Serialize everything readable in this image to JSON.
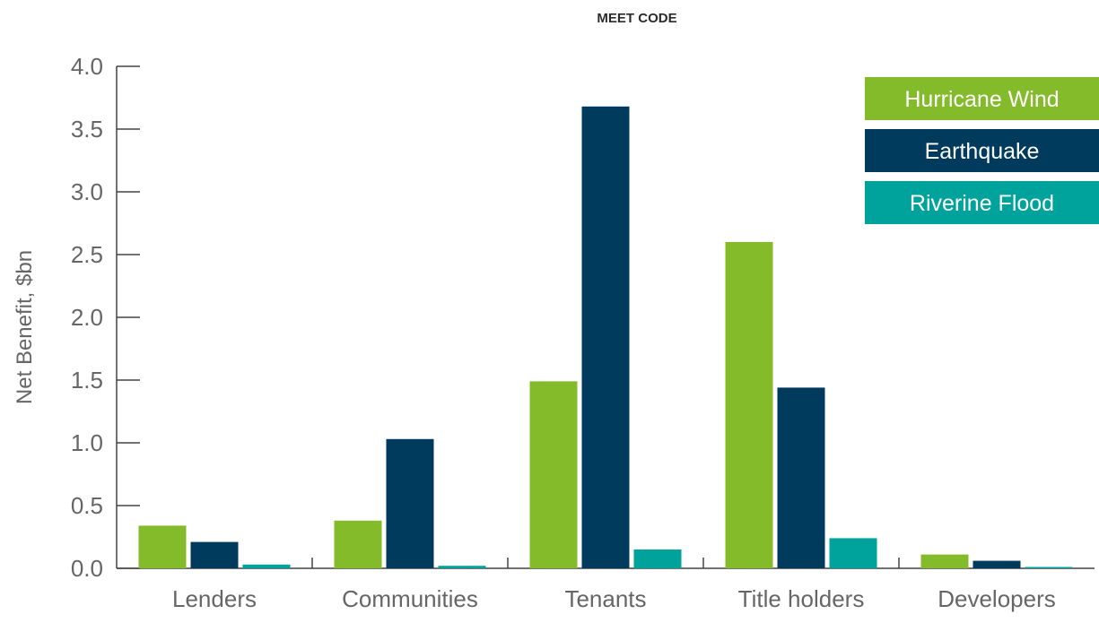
{
  "chart_data": {
    "type": "bar",
    "title": "MEET CODE",
    "ylabel": "Net Benefit, $bn",
    "xlabel": "",
    "ylim": [
      0,
      4.0
    ],
    "yticks": [
      "0.0",
      "0.5",
      "1.0",
      "1.5",
      "2.0",
      "2.5",
      "3.0",
      "3.5",
      "4.0"
    ],
    "categories": [
      "Lenders",
      "Communities",
      "Tenants",
      "Title holders",
      "Developers"
    ],
    "series": [
      {
        "name": "Hurricane Wind",
        "color": "#84bb2a",
        "values": [
          0.34,
          0.38,
          1.49,
          2.6,
          0.11
        ]
      },
      {
        "name": "Earthquake",
        "color": "#003a5c",
        "values": [
          0.21,
          1.03,
          3.68,
          1.44,
          0.06
        ]
      },
      {
        "name": "Riverine Flood",
        "color": "#00a39b",
        "values": [
          0.03,
          0.02,
          0.15,
          0.24,
          0.01
        ]
      }
    ],
    "legend_position": "top-right",
    "grid": false
  }
}
